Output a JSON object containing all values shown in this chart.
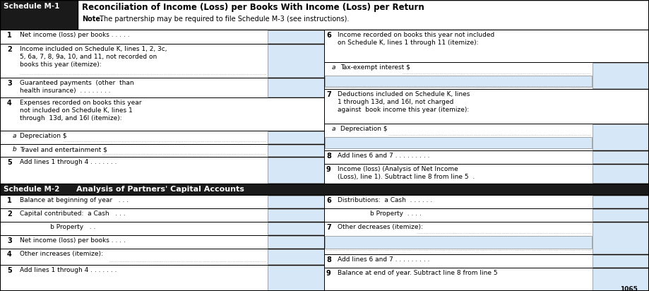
{
  "fig_width": 9.19,
  "fig_height": 4.12,
  "dpi": 100,
  "bg_color": "#ffffff",
  "header_dark_bg": "#1a1a1a",
  "header_text_color": "#ffffff",
  "input_box_color": "#d6e8f7",
  "input_box_border": "#888888",
  "cell_border_color": "#000000",
  "text_color": "#000000",
  "dot_color": "#999999",
  "m1_header_label": "Schedule M-1",
  "m1_header_title": "Reconciliation of Income (Loss) per Books With Income (Loss) per Return",
  "m1_header_note_bold": "Note.",
  "m1_header_note": " The partnership may be required to file Schedule M-3 (see instructions).",
  "m2_header_label": "Schedule M-2",
  "m2_header_title": "Analysis of Partners’ Capital Accounts",
  "footer_text": "1065"
}
